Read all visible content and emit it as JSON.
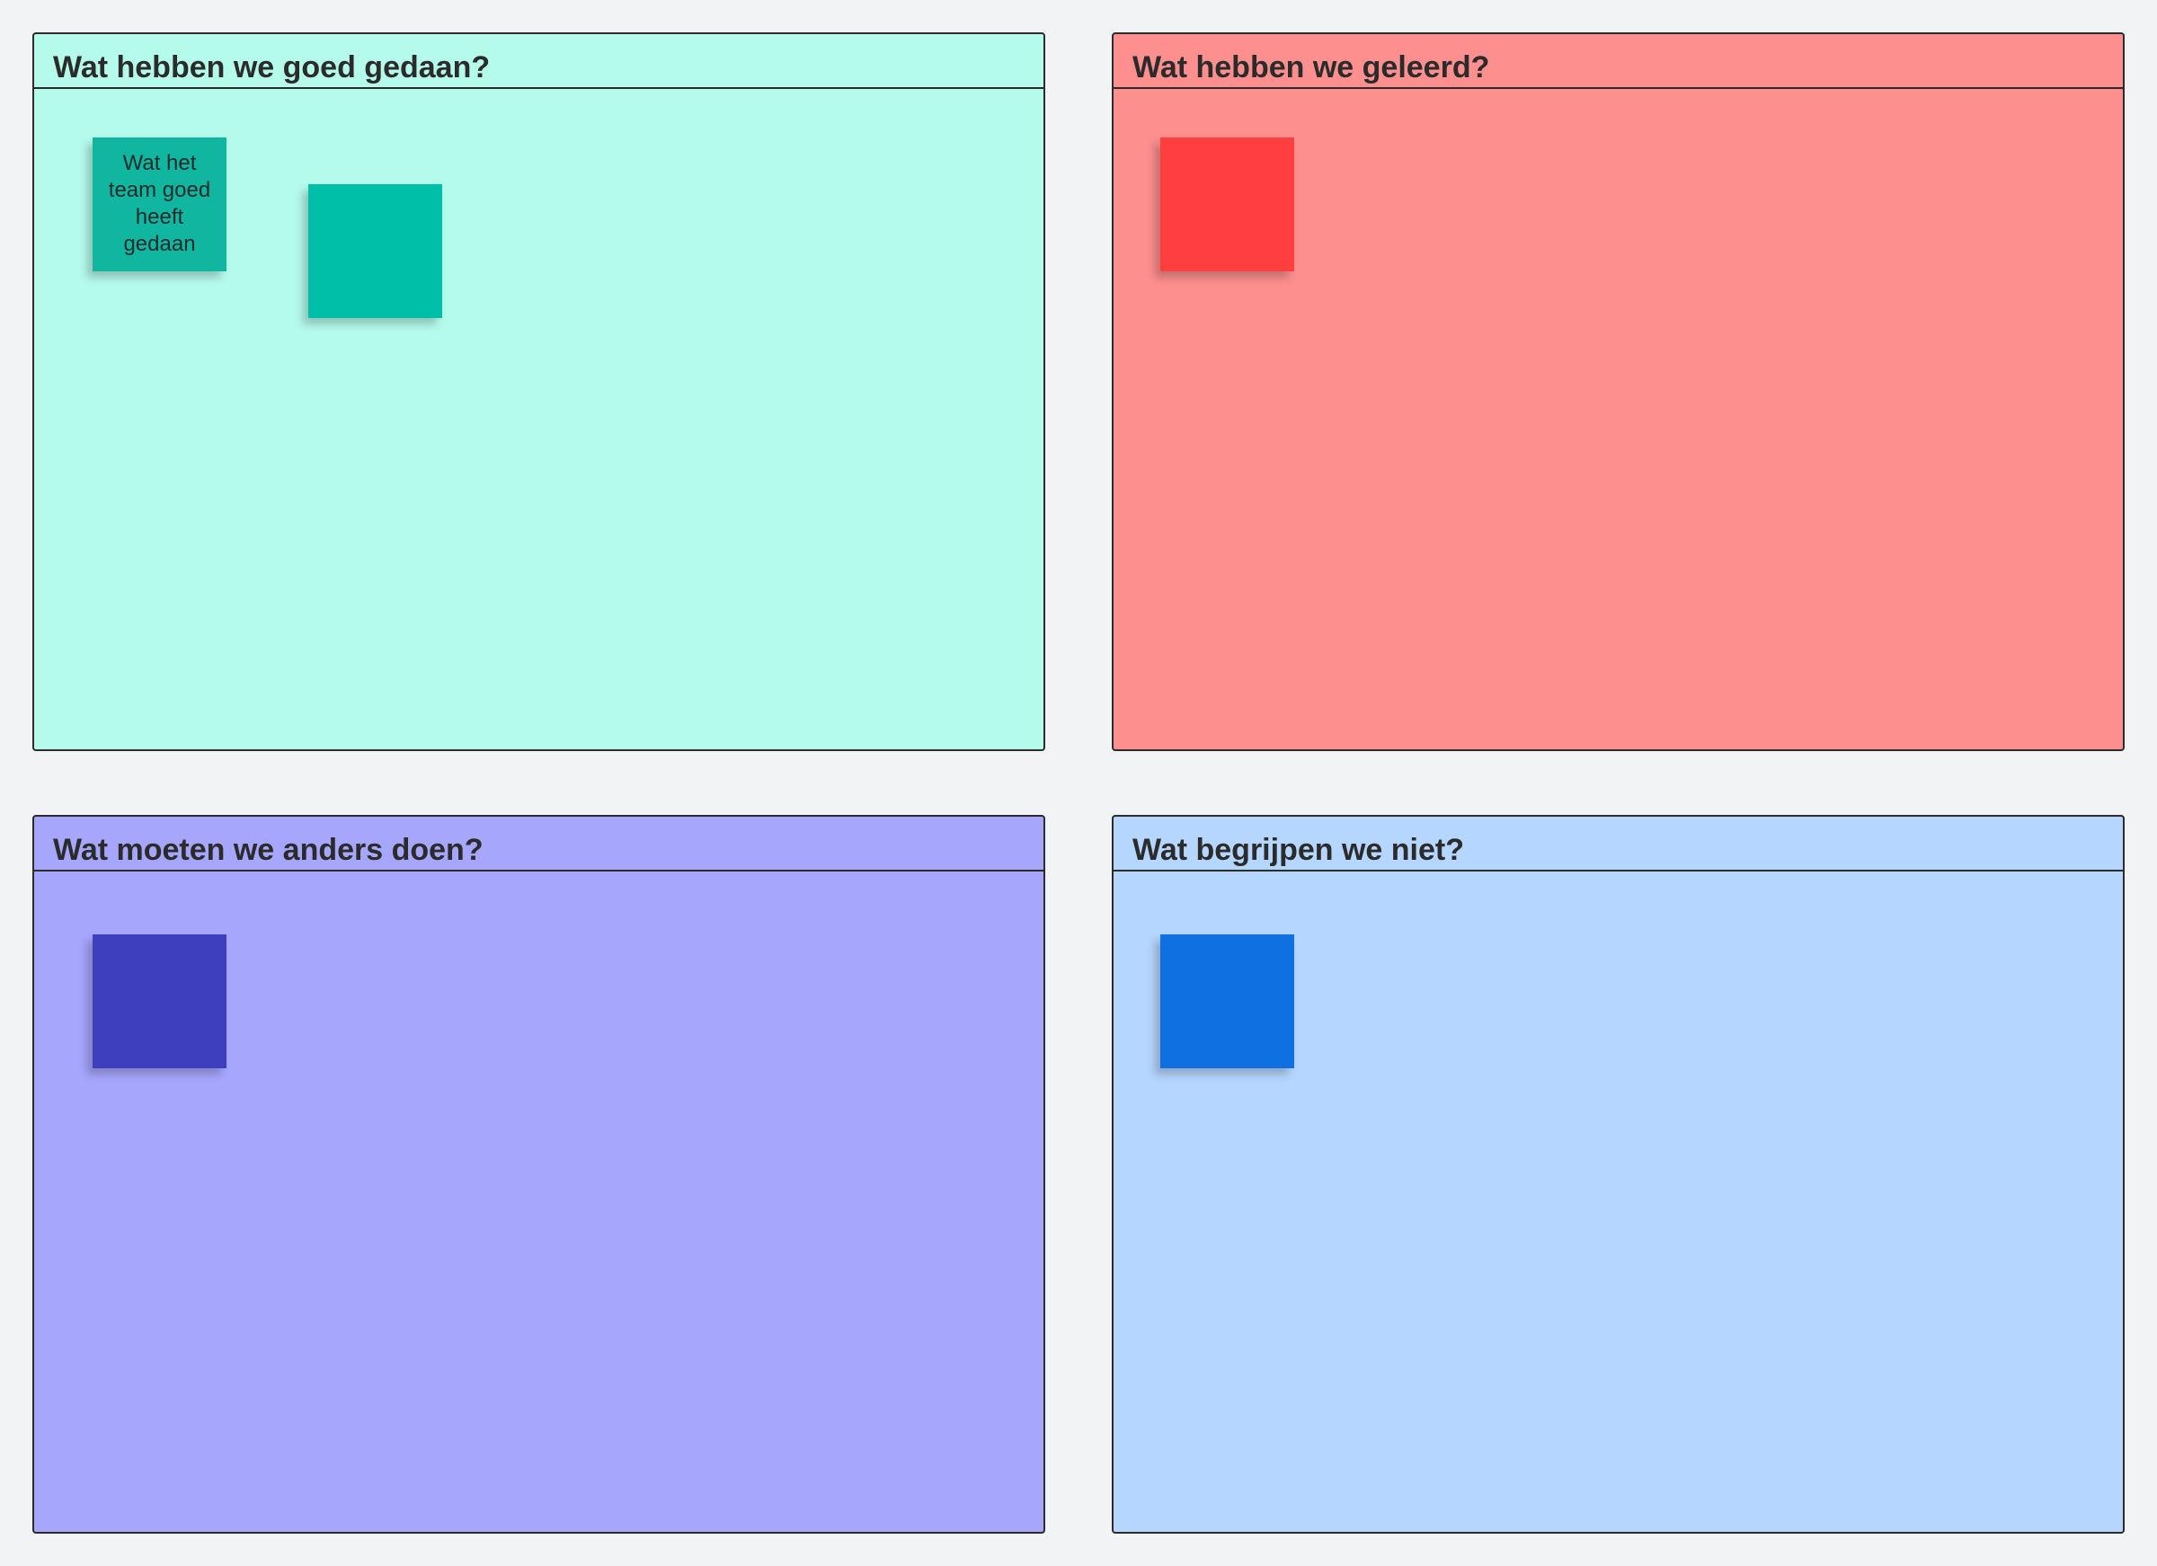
{
  "board": {
    "background_color": "#f2f3f5"
  },
  "frames": [
    {
      "title": "Wat hebben we goed gedaan?",
      "color": "#b5fbec",
      "stickies": [
        {
          "text": "Wat het team goed heeft gedaan",
          "color": "#10b6a0"
        },
        {
          "text": "",
          "color": "#00bfa8"
        }
      ]
    },
    {
      "title": "Wat hebben we geleerd?",
      "color": "#fd8f8e",
      "stickies": [
        {
          "text": "",
          "color": "#fe3e3f"
        }
      ]
    },
    {
      "title": "Wat moeten we anders doen?",
      "color": "#a6a6fd",
      "stickies": [
        {
          "text": "",
          "color": "#3d3fbf"
        }
      ]
    },
    {
      "title": "Wat begrijpen we niet?",
      "color": "#b5d6ff",
      "stickies": [
        {
          "text": "",
          "color": "#0f71e1"
        }
      ]
    }
  ]
}
